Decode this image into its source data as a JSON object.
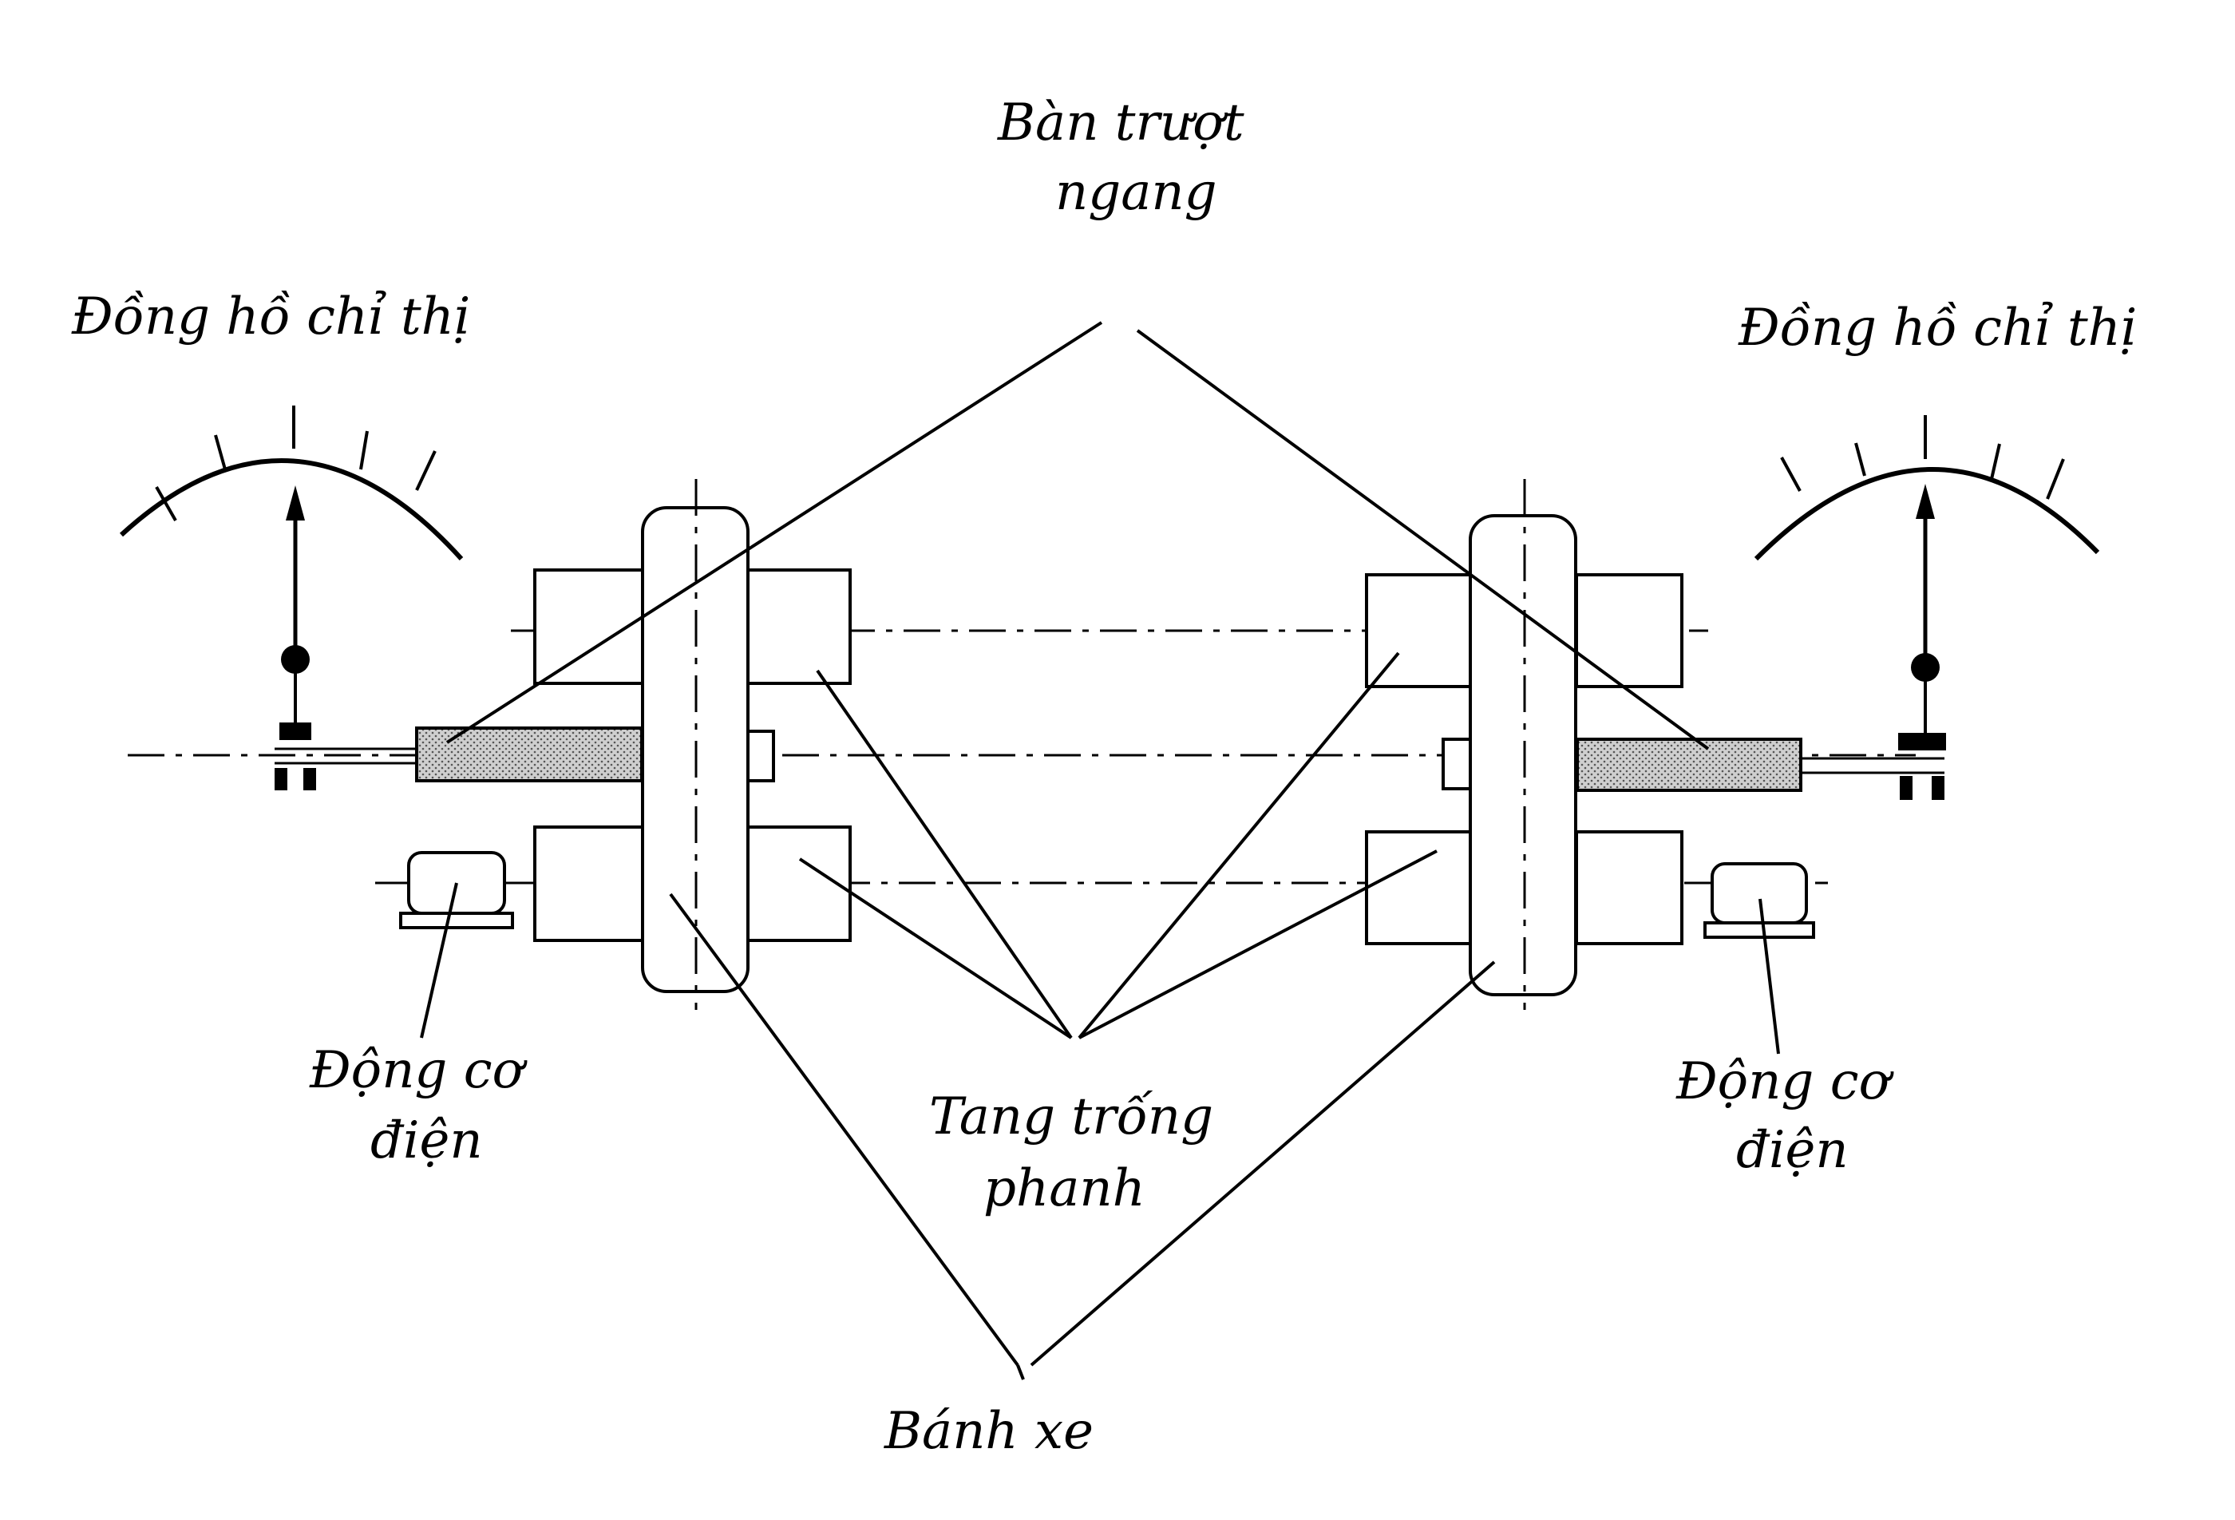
{
  "labels": {
    "ban_truot_1": "Bàn trượt",
    "ban_truot_2": "ngang",
    "dong_ho_left": "Đồng hồ chỉ thị",
    "dong_ho_right": "Đồng hồ chỉ thị",
    "dong_co_left_1": "Động cơ",
    "dong_co_left_2": "điện",
    "dong_co_right_1": "Động cơ",
    "dong_co_right_2": "điện",
    "tang_trong_1": "Tang trống",
    "tang_trong_2": "phanh",
    "banh_xe": "Bánh xe"
  }
}
